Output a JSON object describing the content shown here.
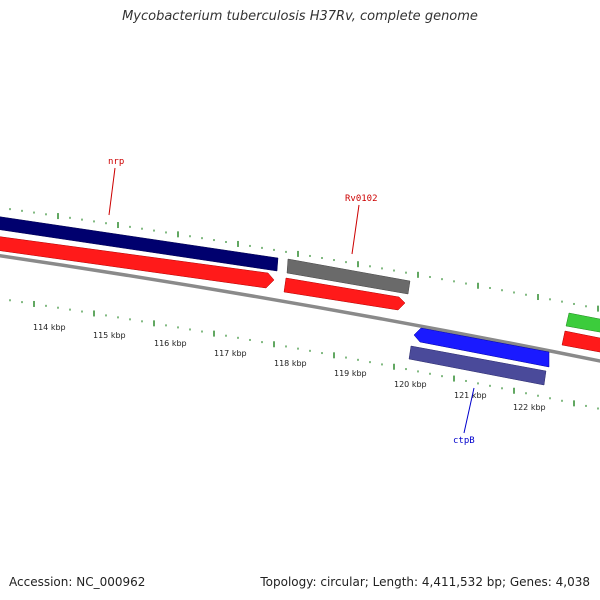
{
  "title": "Mycobacterium tuberculosis H37Rv, complete genome",
  "footer": {
    "accession": "Accession: NC_000962",
    "summary": "Topology: circular; Length: 4,411,532 bp; Genes: 4,038"
  },
  "colors": {
    "backbone": "#8a8a8a",
    "ticks": "#2e8b2e",
    "forward_label": "#cc0000",
    "reverse_label": "#0000cc",
    "dark_blue_feature": "#00006e",
    "red_feature": "#ff1a1a",
    "gray_feature": "#6a6a6a",
    "blue_feature": "#1a1aff",
    "slate_feature": "#4a4a9a",
    "green_feature": "#3ccc3c"
  },
  "kbp_labels": [
    "114 kbp",
    "115 kbp",
    "116 kbp",
    "117 kbp",
    "118 kbp",
    "119 kbp",
    "120 kbp",
    "121 kbp",
    "122 kbp"
  ],
  "gene_labels": [
    {
      "text": "nrp",
      "strand": "forward"
    },
    {
      "text": "Rv0102",
      "strand": "forward"
    },
    {
      "text": "ctpB",
      "strand": "reverse"
    }
  ]
}
